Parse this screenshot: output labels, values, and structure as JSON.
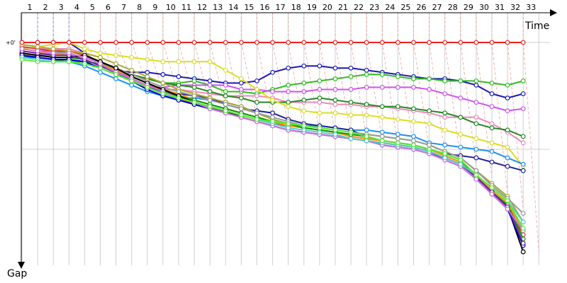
{
  "chart_data": {
    "type": "line",
    "x_axis_label": "Time",
    "y_axis_label": "Gap",
    "zero_label": "+0'",
    "laps": [
      1,
      2,
      3,
      4,
      5,
      6,
      7,
      8,
      9,
      10,
      11,
      12,
      13,
      14,
      15,
      16,
      17,
      18,
      19,
      20,
      21,
      22,
      23,
      24,
      25,
      26,
      27,
      28,
      29,
      30,
      31,
      32,
      33
    ],
    "gap_range": [
      0,
      -100
    ],
    "grid": true,
    "series": [
      {
        "color": "#e8231f",
        "values": [
          0,
          0,
          0,
          0,
          0,
          0,
          0,
          0,
          0,
          0,
          0,
          0,
          0,
          0,
          0,
          0,
          0,
          0,
          0,
          0,
          0,
          0,
          0,
          0,
          0,
          0,
          0,
          0,
          0,
          0,
          0,
          0,
          0
        ]
      },
      {
        "color": "#1b1bb3",
        "values": [
          0,
          0,
          0,
          0,
          -5,
          -10,
          -13,
          -14,
          -14,
          -15,
          -16,
          -17,
          -18,
          -19,
          -19,
          -18,
          -14,
          -12,
          -11,
          -11,
          -12,
          -12,
          -13,
          -14,
          -15,
          -16,
          -17,
          -17,
          -18,
          -20,
          -24,
          -26,
          -24
        ]
      },
      {
        "color": "#33bb22",
        "values": [
          -7,
          -6,
          -5,
          -4,
          -6,
          -9,
          -12,
          -15,
          -17,
          -19,
          -19,
          -18,
          -20,
          -23,
          -23,
          -24,
          -22,
          -20,
          -19,
          -18,
          -17,
          -16,
          -15,
          -15,
          -16,
          -17,
          -17,
          -18,
          -18,
          -18,
          -19,
          -20,
          -18
        ]
      },
      {
        "color": "#cc55ee",
        "values": [
          -3,
          -4,
          -4,
          -4,
          -6,
          -9,
          -13,
          -17,
          -21,
          -21,
          -20,
          -20,
          -20,
          -20,
          -22,
          -22,
          -23,
          -23,
          -23,
          -22,
          -22,
          -22,
          -21,
          -21,
          -21,
          -21,
          -22,
          -24,
          -26,
          -28,
          -30,
          -32,
          -31
        ]
      },
      {
        "color": "#ee88bb",
        "values": [
          -2,
          -3,
          -3,
          -3,
          -5,
          -10,
          -15,
          -18,
          -20,
          -22,
          -22,
          -23,
          -24,
          -25,
          -25,
          -25,
          -26,
          -28,
          -28,
          -28,
          -29,
          -29,
          -30,
          -30,
          -31,
          -32,
          -33,
          -35,
          -35,
          -35,
          -38,
          -42,
          -47
        ]
      },
      {
        "color": "#228822",
        "values": [
          -7,
          -7,
          -8,
          -9,
          -9,
          -10,
          -12,
          -15,
          -17,
          -19,
          -20,
          -21,
          -23,
          -25,
          -26,
          -28,
          -28,
          -28,
          -27,
          -26,
          -27,
          -28,
          -29,
          -30,
          -30,
          -31,
          -32,
          -33,
          -35,
          -38,
          -40,
          -41,
          -44
        ]
      },
      {
        "color": "#dddd22",
        "values": [
          -3,
          -2,
          -1,
          0,
          -3,
          -5,
          -6,
          -7,
          -8,
          -9,
          -9,
          -9,
          -9,
          -13,
          -17,
          -22,
          -27,
          -30,
          -32,
          -33,
          -33,
          -34,
          -34,
          -35,
          -36,
          -37,
          -38,
          -41,
          -43,
          -45,
          -47,
          -49,
          -58
        ]
      },
      {
        "color": "#1e90ee",
        "values": [
          -7,
          -8,
          -9,
          -9,
          -11,
          -14,
          -17,
          -20,
          -23,
          -25,
          -26,
          -26,
          -27,
          -28,
          -30,
          -33,
          -36,
          -38,
          -39,
          -39,
          -40,
          -41,
          -41,
          -42,
          -43,
          -44,
          -47,
          -48,
          -49,
          -50,
          -51,
          -54,
          -57
        ]
      },
      {
        "color": "#20209e",
        "values": [
          -6,
          -7,
          -8,
          -8,
          -9,
          -12,
          -15,
          -18,
          -21,
          -23,
          -24,
          -25,
          -26,
          -29,
          -31,
          -32,
          -33,
          -36,
          -38,
          -39,
          -40,
          -41,
          -44,
          -46,
          -47,
          -48,
          -50,
          -52,
          -53,
          -54,
          -56,
          -58,
          -60
        ]
      },
      {
        "color": "#e33b2b",
        "values": [
          -2,
          -3,
          -4,
          -4,
          -6,
          -9,
          -12,
          -16,
          -19,
          -23,
          -26,
          -29,
          -31,
          -32,
          -34,
          -36,
          -38,
          -39,
          -40,
          -41,
          -42,
          -44,
          -45,
          -46,
          -47,
          -48,
          -50,
          -53,
          -56,
          -62,
          -70,
          -76,
          -90
        ]
      },
      {
        "color": "#ff9900",
        "values": [
          -4,
          -5,
          -5,
          -6,
          -7,
          -10,
          -13,
          -16,
          -19,
          -22,
          -24,
          -27,
          -29,
          -31,
          -33,
          -35,
          -37,
          -39,
          -40,
          -41,
          -42,
          -44,
          -45,
          -46,
          -47,
          -48,
          -50,
          -53,
          -56,
          -62,
          -69,
          -75,
          -88
        ]
      },
      {
        "color": "#009900",
        "values": [
          -5,
          -6,
          -7,
          -7,
          -8,
          -11,
          -14,
          -17,
          -20,
          -23,
          -25,
          -27,
          -29,
          -31,
          -33,
          -35,
          -37,
          -38,
          -40,
          -41,
          -42,
          -43,
          -44,
          -46,
          -47,
          -48,
          -50,
          -52,
          -55,
          -63,
          -70,
          -76,
          -92
        ]
      },
      {
        "color": "#aaaa33",
        "values": [
          -1,
          -2,
          -3,
          -4,
          -5,
          -7,
          -10,
          -13,
          -16,
          -19,
          -22,
          -24,
          -26,
          -28,
          -30,
          -33,
          -36,
          -38,
          -39,
          -40,
          -41,
          -42,
          -43,
          -44,
          -45,
          -46,
          -48,
          -51,
          -54,
          -60,
          -66,
          -72,
          -84
        ]
      },
      {
        "color": "#999999",
        "values": [
          -6,
          -6,
          -6,
          -6,
          -7,
          -9,
          -12,
          -15,
          -18,
          -21,
          -23,
          -25,
          -27,
          -29,
          -31,
          -33,
          -35,
          -37,
          -39,
          -40,
          -41,
          -42,
          -43,
          -44,
          -45,
          -46,
          -48,
          -51,
          -54,
          -60,
          -67,
          -73,
          -80
        ]
      },
      {
        "color": "#000000",
        "values": [
          -5,
          -6,
          -7,
          -7,
          -6,
          -9,
          -12,
          -16,
          -19,
          -22,
          -25,
          -28,
          -30,
          -32,
          -35,
          -37,
          -39,
          -41,
          -42,
          -43,
          -44,
          -45,
          -46,
          -47,
          -48,
          -49,
          -51,
          -54,
          -57,
          -63,
          -70,
          -77,
          -98
        ]
      },
      {
        "color": "#0000cc",
        "values": [
          -6,
          -7,
          -8,
          -8,
          -9,
          -12,
          -15,
          -18,
          -22,
          -25,
          -27,
          -29,
          -31,
          -33,
          -35,
          -37,
          -39,
          -41,
          -42,
          -43,
          -44,
          -45,
          -46,
          -48,
          -49,
          -50,
          -52,
          -55,
          -58,
          -64,
          -71,
          -78,
          -95
        ]
      },
      {
        "color": "#7722aa",
        "values": [
          -4,
          -5,
          -6,
          -6,
          -8,
          -11,
          -14,
          -18,
          -21,
          -24,
          -26,
          -28,
          -30,
          -33,
          -35,
          -37,
          -39,
          -41,
          -42,
          -43,
          -44,
          -45,
          -46,
          -48,
          -49,
          -50,
          -52,
          -54,
          -57,
          -63,
          -70,
          -77,
          -94
        ]
      },
      {
        "color": "#cc77dd",
        "values": [
          -3,
          -4,
          -5,
          -5,
          -7,
          -10,
          -14,
          -17,
          -20,
          -23,
          -26,
          -28,
          -31,
          -33,
          -35,
          -37,
          -39,
          -41,
          -42,
          -43,
          -44,
          -45,
          -46,
          -48,
          -49,
          -50,
          -52,
          -55,
          -58,
          -64,
          -71,
          -78,
          -88
        ]
      },
      {
        "color": "#55cccc",
        "values": [
          -7,
          -8,
          -9,
          -9,
          -10,
          -12,
          -15,
          -18,
          -21,
          -24,
          -26,
          -28,
          -30,
          -32,
          -34,
          -36,
          -38,
          -40,
          -41,
          -42,
          -43,
          -45,
          -46,
          -47,
          -48,
          -49,
          -51,
          -54,
          -57,
          -62,
          -68,
          -74,
          -84
        ]
      },
      {
        "color": "#55ee33",
        "values": [
          -8,
          -9,
          -9,
          -9,
          -10,
          -12,
          -15,
          -18,
          -21,
          -24,
          -26,
          -28,
          -30,
          -32,
          -34,
          -36,
          -37,
          -38,
          -39,
          -40,
          -41,
          -42,
          -44,
          -46,
          -47,
          -48,
          -50,
          -52,
          -55,
          -62,
          -68,
          -74,
          -87
        ]
      }
    ]
  }
}
